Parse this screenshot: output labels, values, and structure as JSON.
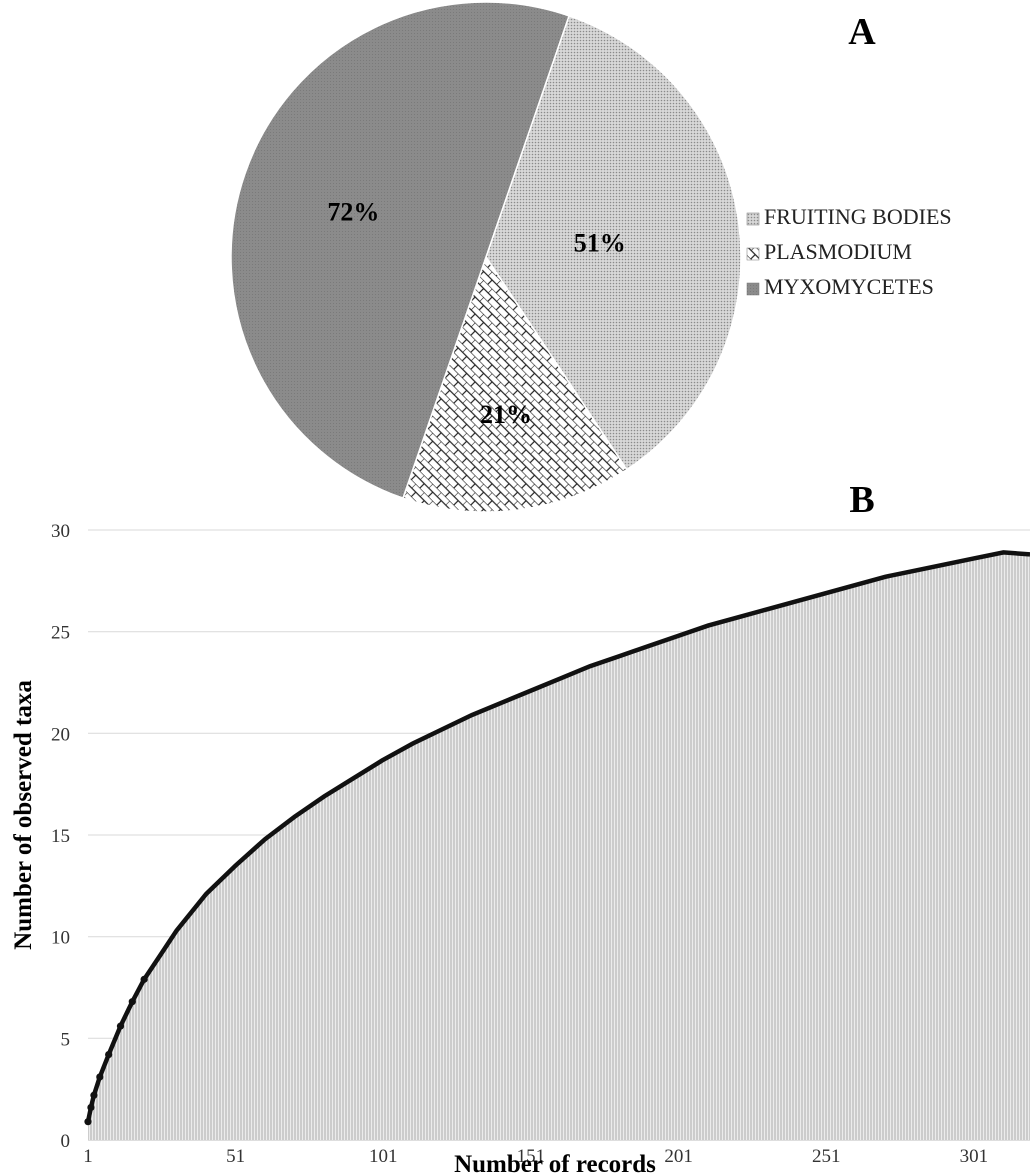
{
  "panels": {
    "a_label": "A",
    "b_label": "B"
  },
  "chart_data": [
    {
      "type": "pie",
      "panel": "A",
      "slices": [
        {
          "name": "FRUITING BODIES",
          "label": "51%",
          "value": 51,
          "pattern": "dots",
          "color": "#cfcfcf"
        },
        {
          "name": "PLASMODIUM",
          "label": "21%",
          "value": 21,
          "pattern": "brick",
          "color": "#ffffff"
        },
        {
          "name": "MYXOMYCETES",
          "label": "72%",
          "value": 72,
          "pattern": "solid",
          "color": "#8e8e8e"
        }
      ],
      "legend_position": "right"
    },
    {
      "type": "area",
      "panel": "B",
      "xlabel": "Number of records",
      "ylabel": "Number of observed taxa",
      "xlim": [
        1,
        320
      ],
      "ylim": [
        0,
        30
      ],
      "x_ticks": [
        "1",
        "51",
        "101",
        "151",
        "201",
        "251",
        "301"
      ],
      "y_ticks": [
        "0",
        "5",
        "10",
        "15",
        "20",
        "25",
        "30"
      ],
      "grid": true,
      "series": [
        {
          "x": [
            1,
            2,
            3,
            5,
            8,
            12,
            16,
            20,
            26,
            31,
            41,
            51,
            61,
            71,
            81,
            91,
            101,
            111,
            121,
            131,
            141,
            151,
            161,
            171,
            181,
            191,
            201,
            211,
            221,
            231,
            241,
            251,
            261,
            271,
            281,
            291,
            301,
            311,
            320
          ],
          "values": [
            0.9,
            1.6,
            2.2,
            3.1,
            4.2,
            5.6,
            6.8,
            7.9,
            9.2,
            10.3,
            12.1,
            13.5,
            14.8,
            15.9,
            16.9,
            17.8,
            18.7,
            19.5,
            20.2,
            20.9,
            21.5,
            22.1,
            22.7,
            23.3,
            23.8,
            24.3,
            24.8,
            25.3,
            25.7,
            26.1,
            26.5,
            26.9,
            27.3,
            27.7,
            28.0,
            28.3,
            28.6,
            28.9,
            28.8
          ]
        }
      ]
    }
  ]
}
